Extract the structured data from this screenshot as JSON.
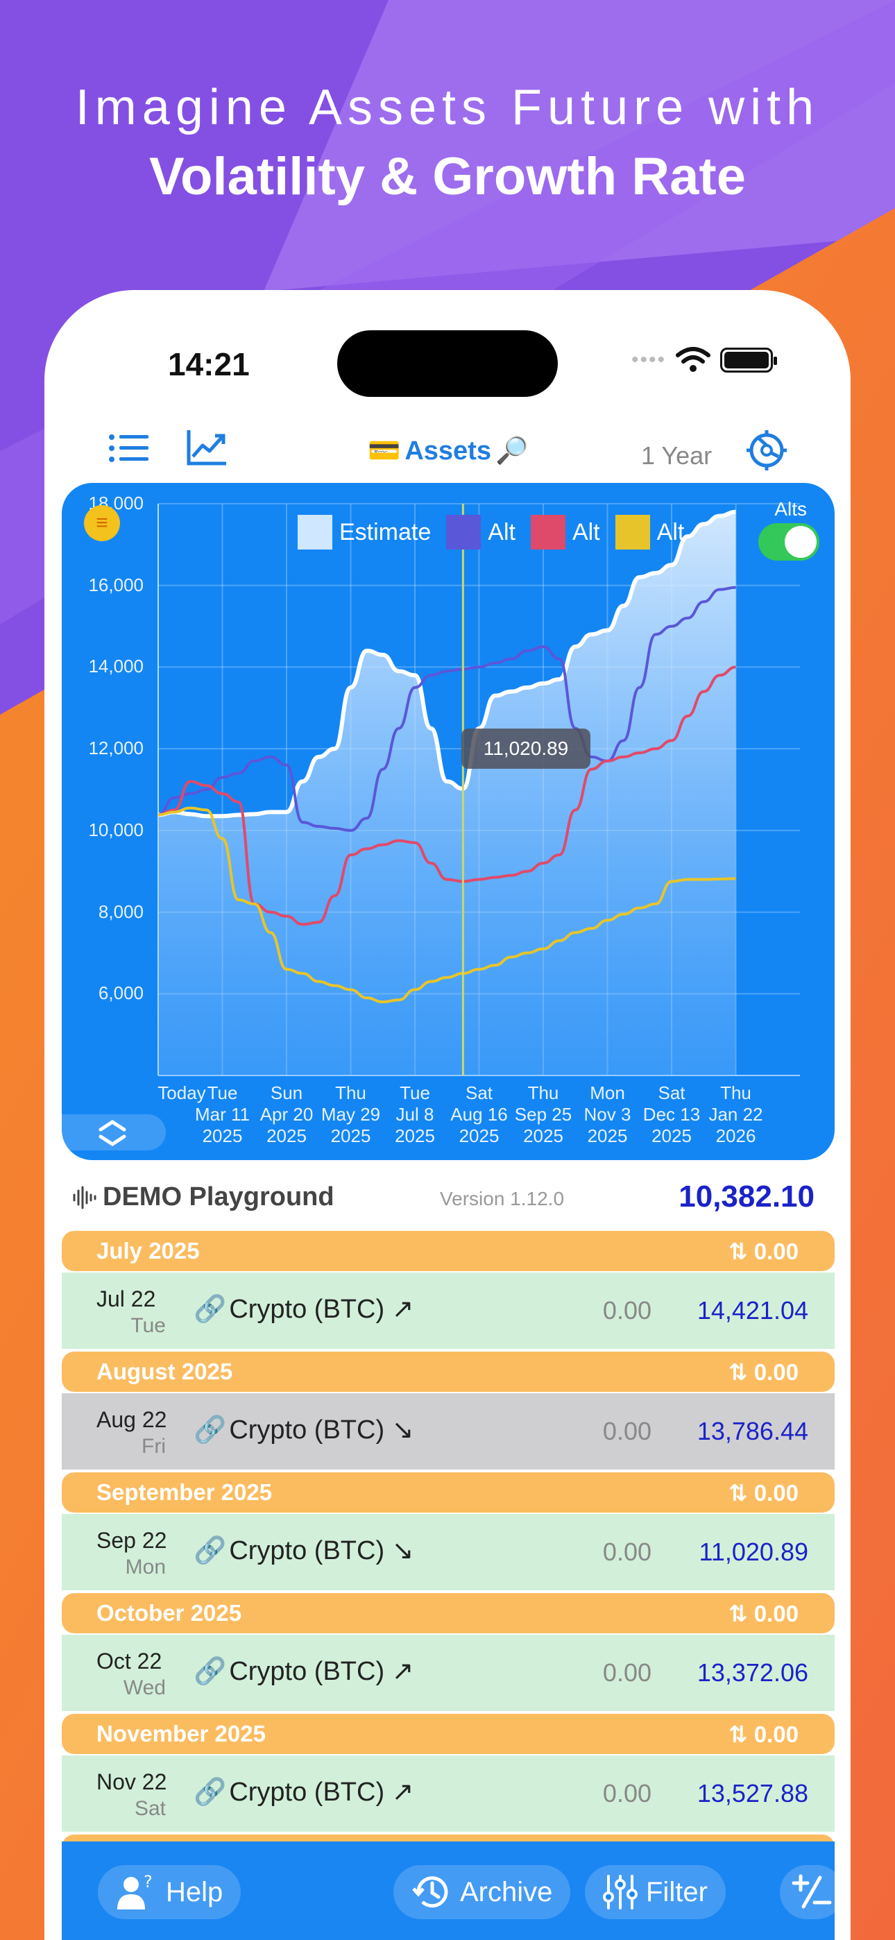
{
  "headline": {
    "line1": "Imagine Assets Future with",
    "line2": "Volatility & Growth Rate"
  },
  "status_bar": {
    "time": "14:21"
  },
  "nav": {
    "title": "Assets",
    "title_emoji_left": "💳",
    "title_emoji_right": "🔎",
    "range": "1 Year"
  },
  "chart": {
    "alts_label": "Alts",
    "tooltip": "11,020.89",
    "legend": [
      {
        "label": "Estimate",
        "color": "#cfe7ff"
      },
      {
        "label": "Alt",
        "color": "#5a57d8"
      },
      {
        "label": "Alt",
        "color": "#e04a6a"
      },
      {
        "label": "Alt",
        "color": "#e7c52a"
      }
    ]
  },
  "chart_data": {
    "type": "area",
    "title": "",
    "xlabel": "",
    "ylabel": "",
    "ylim": [
      4000,
      18000
    ],
    "xlim": [
      0,
      10
    ],
    "grid": true,
    "legend_position": "top",
    "y_ticks": [
      "6,000",
      "8,000",
      "10,000",
      "12,000",
      "14,000",
      "16,000",
      "18,000"
    ],
    "x_ticks": [
      [
        "Today"
      ],
      [
        "Tue",
        "Mar 11",
        "2025"
      ],
      [
        "Sun",
        "Apr 20",
        "2025"
      ],
      [
        "Thu",
        "May 29",
        "2025"
      ],
      [
        "Tue",
        "Jul 8",
        "2025"
      ],
      [
        "Sat",
        "Aug 16",
        "2025"
      ],
      [
        "Thu",
        "Sep 25",
        "2025"
      ],
      [
        "Mon",
        "Nov 3",
        "2025"
      ],
      [
        "Sat",
        "Dec 13",
        "2025"
      ],
      [
        "Thu",
        "Jan 22",
        "2026"
      ]
    ],
    "x": [
      0,
      0.25,
      0.5,
      0.75,
      1,
      1.25,
      1.5,
      1.75,
      2,
      2.25,
      2.5,
      2.75,
      3,
      3.25,
      3.5,
      3.75,
      4,
      4.25,
      4.5,
      4.75,
      5,
      5.25,
      5.5,
      5.75,
      6,
      6.25,
      6.5,
      6.75,
      7,
      7.25,
      7.5,
      7.75,
      8,
      8.25,
      8.5,
      8.75,
      9
    ],
    "series": [
      {
        "name": "Estimate",
        "color": "#e6f2ff",
        "fill": true,
        "values": [
          10382,
          10450,
          10400,
          10350,
          10350,
          10380,
          10400,
          10450,
          10450,
          11200,
          11800,
          12000,
          13500,
          14400,
          14300,
          13900,
          13800,
          12500,
          11200,
          11021,
          12500,
          13300,
          13400,
          13500,
          13600,
          13700,
          14500,
          14800,
          14900,
          15500,
          16200,
          16300,
          16500,
          17200,
          17500,
          17700,
          17800
        ]
      },
      {
        "name": "Alt",
        "color": "#5a57d8",
        "fill": false,
        "values": [
          10382,
          10800,
          10900,
          11000,
          11300,
          11400,
          11700,
          11800,
          11600,
          10200,
          10100,
          10050,
          10000,
          10300,
          11500,
          12500,
          13500,
          13800,
          13900,
          13950,
          14000,
          14100,
          14200,
          14400,
          14500,
          14200,
          12500,
          11800,
          11700,
          12200,
          13500,
          14800,
          15000,
          15200,
          15600,
          15900,
          15950
        ]
      },
      {
        "name": "Alt",
        "color": "#e04a6a",
        "fill": false,
        "values": [
          10382,
          10500,
          11200,
          11100,
          10900,
          10700,
          8200,
          8000,
          7900,
          7700,
          7750,
          8400,
          9400,
          9550,
          9650,
          9750,
          9700,
          9200,
          8800,
          8750,
          8800,
          8850,
          8900,
          9000,
          9200,
          9400,
          10500,
          11500,
          11700,
          11800,
          11900,
          12000,
          12200,
          12800,
          13400,
          13800,
          14000
        ]
      },
      {
        "name": "Alt",
        "color": "#e7c52a",
        "fill": false,
        "values": [
          10382,
          10450,
          10550,
          10500,
          9800,
          8300,
          8200,
          7500,
          6600,
          6500,
          6300,
          6200,
          6100,
          5900,
          5800,
          5850,
          6100,
          6300,
          6400,
          6500,
          6600,
          6700,
          6900,
          7000,
          7100,
          7300,
          7500,
          7600,
          7800,
          7950,
          8100,
          8200,
          8750,
          8800,
          8800,
          8810,
          8820
        ]
      }
    ]
  },
  "summary": {
    "name": "DEMO Playground",
    "version": "Version 1.12.0",
    "total": "10,382.10"
  },
  "list": [
    {
      "month": "July 2025",
      "month_change": "⇅ 0.00",
      "date": "Jul 22",
      "dow": "Tue",
      "asset": "Crypto (BTC) ↗",
      "change": "0.00",
      "value": "14,421.04",
      "style": "green"
    },
    {
      "month": "August 2025",
      "month_change": "⇅ 0.00",
      "date": "Aug 22",
      "dow": "Fri",
      "asset": "Crypto (BTC) ↘",
      "change": "0.00",
      "value": "13,786.44",
      "style": "gray"
    },
    {
      "month": "September 2025",
      "month_change": "⇅ 0.00",
      "date": "Sep 22",
      "dow": "Mon",
      "asset": "Crypto (BTC) ↘",
      "change": "0.00",
      "value": "11,020.89",
      "style": "green"
    },
    {
      "month": "October 2025",
      "month_change": "⇅ 0.00",
      "date": "Oct 22",
      "dow": "Wed",
      "asset": "Crypto (BTC) ↗",
      "change": "0.00",
      "value": "13,372.06",
      "style": "green"
    },
    {
      "month": "November 2025",
      "month_change": "⇅ 0.00",
      "date": "Nov 22",
      "dow": "Sat",
      "asset": "Crypto (BTC) ↗",
      "change": "0.00",
      "value": "13,527.88",
      "style": "green"
    }
  ],
  "tabbar": {
    "help": "Help",
    "archive": "Archive",
    "filter": "Filter"
  }
}
